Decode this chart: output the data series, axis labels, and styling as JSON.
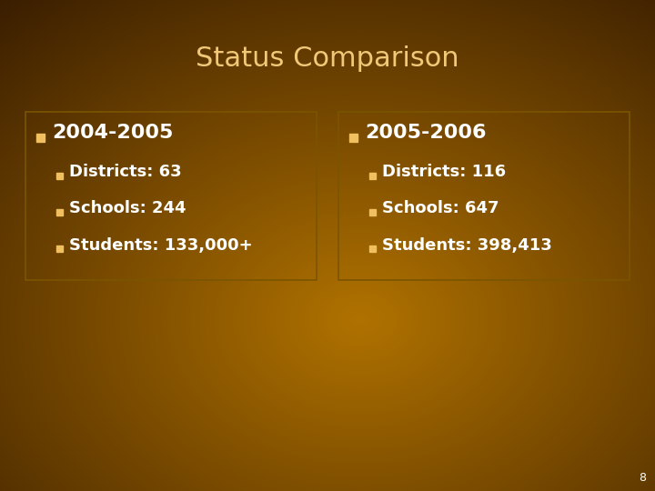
{
  "title": "Status Comparison",
  "title_color": "#F0C878",
  "title_fontsize": 22,
  "box_border_color": "#7A5500",
  "left_box": {
    "header": "2004-2005",
    "bullet1": "Districts: 63",
    "bullet2": "Schools: 244",
    "bullet3": "Students: 133,000+"
  },
  "right_box": {
    "header": "2005-2006",
    "bullet1": "Districts: 116",
    "bullet2": "Schools: 647",
    "bullet3": "Students: 398,413"
  },
  "header_fontsize": 16,
  "bullet_fontsize": 13,
  "text_color": "#FFFFFF",
  "bullet_color": "#F0C060",
  "page_number": "8",
  "bg_corner_dark": "#3A1E00",
  "bg_center_light": "#AA6E00"
}
